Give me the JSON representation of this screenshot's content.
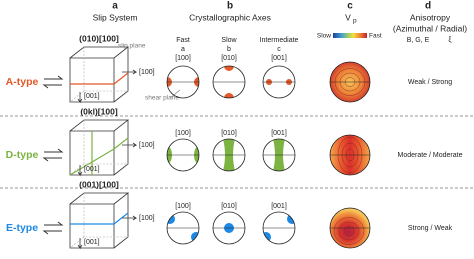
{
  "header": {
    "panels": [
      "a",
      "b",
      "c",
      "d"
    ],
    "slip_system": "Slip System",
    "crystal_axes": "Crystallographic Axes",
    "vp": "V",
    "vp_sub": "p",
    "anisotropy": "Anisotropy",
    "anisotropy_sub": "(Azimuthal / Radial)",
    "params": "B, G, E",
    "xi": "ξ"
  },
  "axes": [
    {
      "speed": "Fast",
      "letter": "a",
      "direction": "[100]"
    },
    {
      "speed": "Slow",
      "letter": "b",
      "direction": "[010]"
    },
    {
      "speed": "Intermediate",
      "letter": "c",
      "direction": "[001]"
    }
  ],
  "colorbar": {
    "slow": "Slow",
    "fast": "Fast"
  },
  "rows": [
    {
      "type": "A-type",
      "slip": "(010)[100]",
      "cube_x": "[100]",
      "cube_z": "[001]",
      "slip_plane": "slip plane",
      "shear_plane": "shear plane",
      "anisotropy": "Weak / Strong"
    },
    {
      "type": "D-type",
      "slip": "(0kl)[100]",
      "cube_x": "[100]",
      "cube_z": "[001]",
      "axis_labels": [
        "[100]",
        "[010]",
        "[001]"
      ],
      "anisotropy": "Moderate / Moderate"
    },
    {
      "type": "E-type",
      "slip": "(001)[100]",
      "cube_x": "[100]",
      "cube_z": "[001]",
      "axis_labels": [
        "[100]",
        "[010]",
        "[001]"
      ],
      "anisotropy": "Strong / Weak"
    }
  ]
}
